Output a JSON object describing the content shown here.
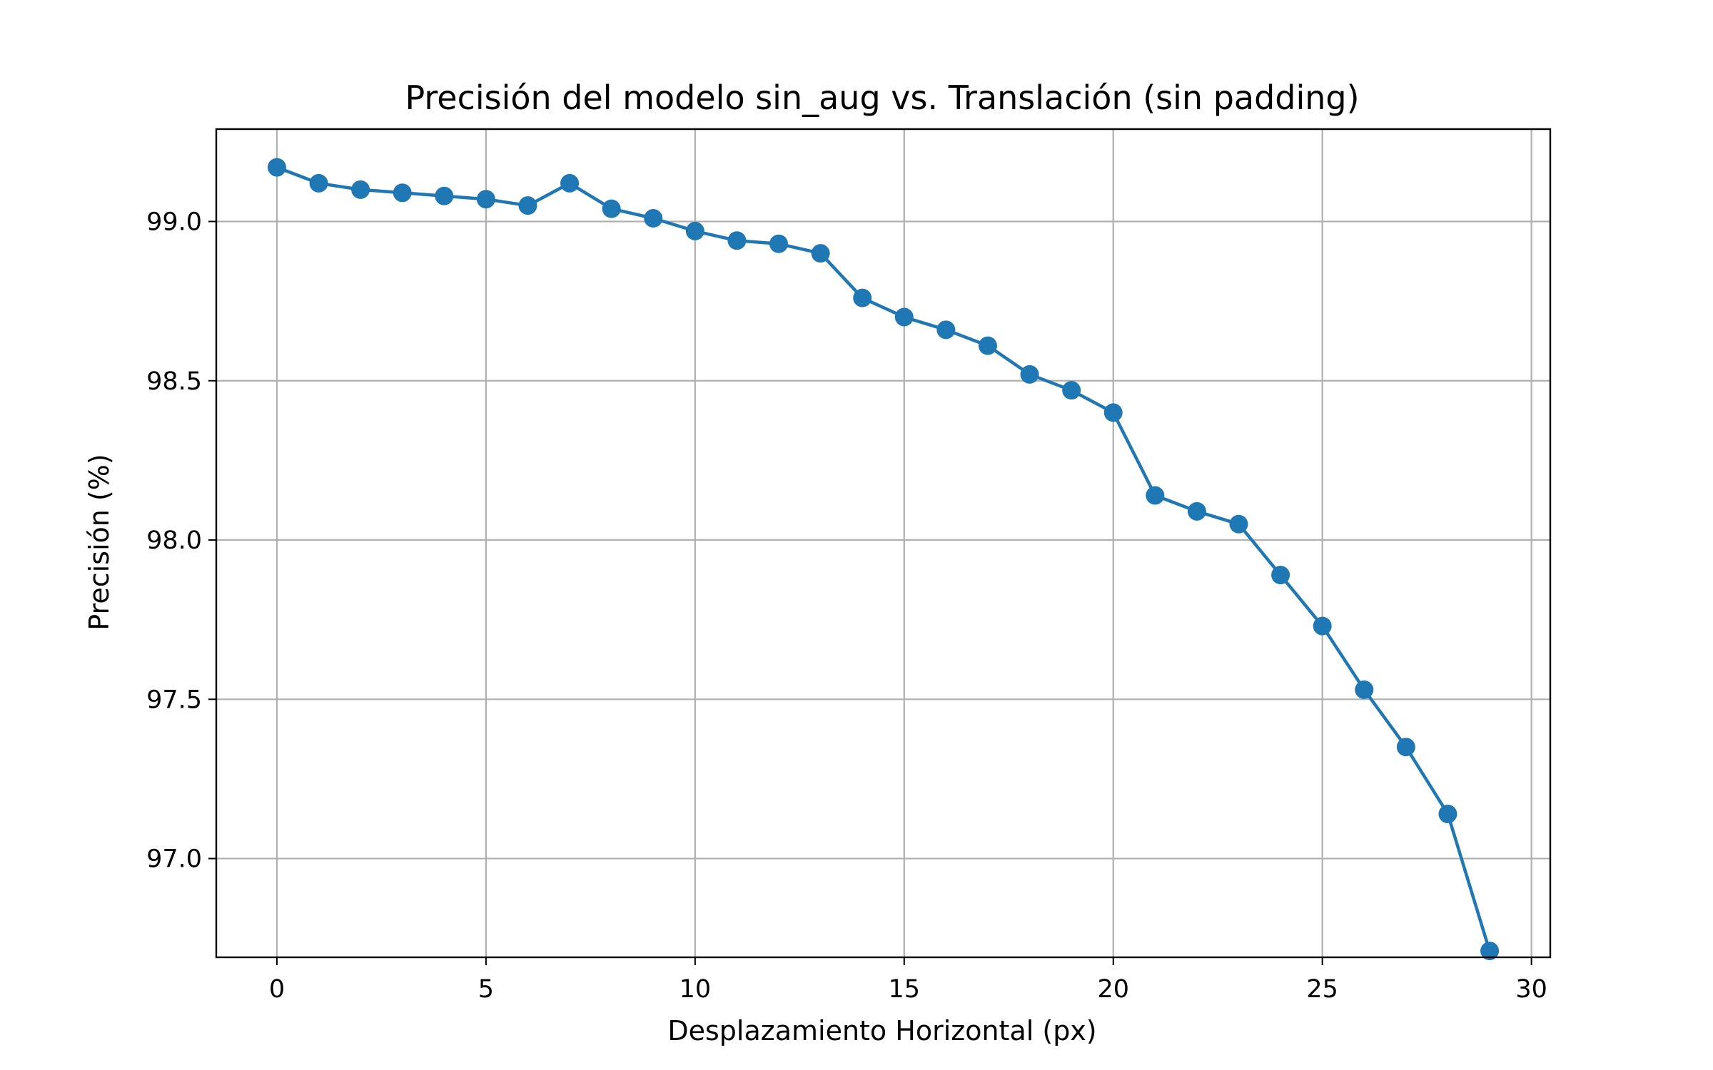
{
  "chart_data": {
    "type": "line",
    "title": "Precisión del modelo sin_aug vs. Translación (sin padding)",
    "xlabel": "Desplazamiento Horizontal (px)",
    "ylabel": "Precisión (%)",
    "xlim": [
      -1.45,
      30.45
    ],
    "ylim": [
      96.69,
      99.29
    ],
    "xticks": [
      0,
      5,
      10,
      15,
      20,
      25,
      30
    ],
    "yticks": [
      97.0,
      97.5,
      98.0,
      98.5,
      99.0
    ],
    "xtick_labels": [
      "0",
      "5",
      "10",
      "15",
      "20",
      "25",
      "30"
    ],
    "ytick_labels": [
      "97.0",
      "97.5",
      "98.0",
      "98.5",
      "99.0"
    ],
    "grid": true,
    "legend": "none",
    "series": [
      {
        "color": "#1f77b4",
        "marker": "circle",
        "x": [
          0,
          1,
          2,
          3,
          4,
          5,
          6,
          7,
          8,
          9,
          10,
          11,
          12,
          13,
          14,
          15,
          16,
          17,
          18,
          19,
          20,
          21,
          22,
          23,
          24,
          25,
          26,
          27,
          28,
          29
        ],
        "y": [
          99.17,
          99.12,
          99.1,
          99.09,
          99.08,
          99.07,
          99.05,
          99.12,
          99.04,
          99.01,
          98.97,
          98.94,
          98.93,
          98.9,
          98.76,
          98.7,
          98.66,
          98.61,
          98.52,
          98.47,
          98.4,
          98.14,
          98.09,
          98.05,
          97.89,
          97.73,
          97.53,
          97.35,
          97.14,
          96.71
        ]
      }
    ]
  }
}
